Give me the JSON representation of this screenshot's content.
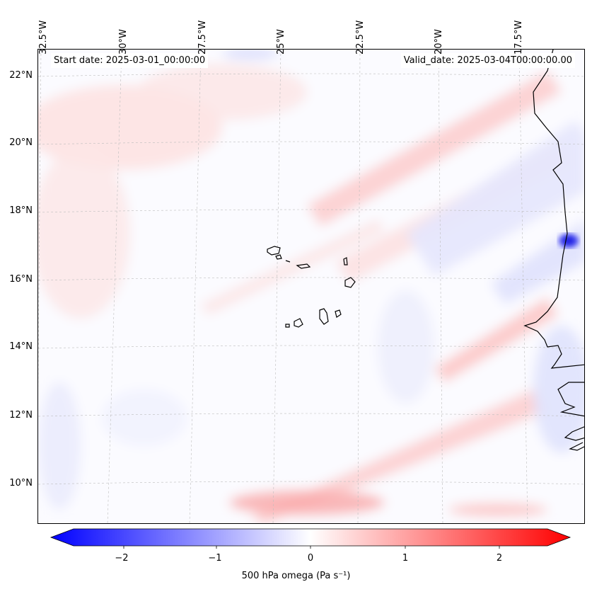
{
  "header": {
    "start_date": "Start date: 2025-03-01_00:00:00",
    "valid_date": "Valid_date: 2025-03-04T00:00:00.00"
  },
  "map": {
    "lon_labels": [
      "32.5°W",
      "30°W",
      "27.5°W",
      "25°W",
      "22.5°W",
      "20°W",
      "17.5°W"
    ],
    "lat_labels": [
      "22°N",
      "20°N",
      "18°N",
      "16°N",
      "14°N",
      "12°N",
      "10°N"
    ]
  },
  "colorbar": {
    "label": "500 hPa omega (Pa s⁻¹)",
    "ticks": [
      "−2",
      "−1",
      "0",
      "1",
      "2"
    ],
    "range": [
      -2.5,
      2.5
    ],
    "colormap": "bwr",
    "colors": {
      "min": "#0000ff",
      "mid": "#ffffff",
      "max": "#ff0000"
    }
  }
}
